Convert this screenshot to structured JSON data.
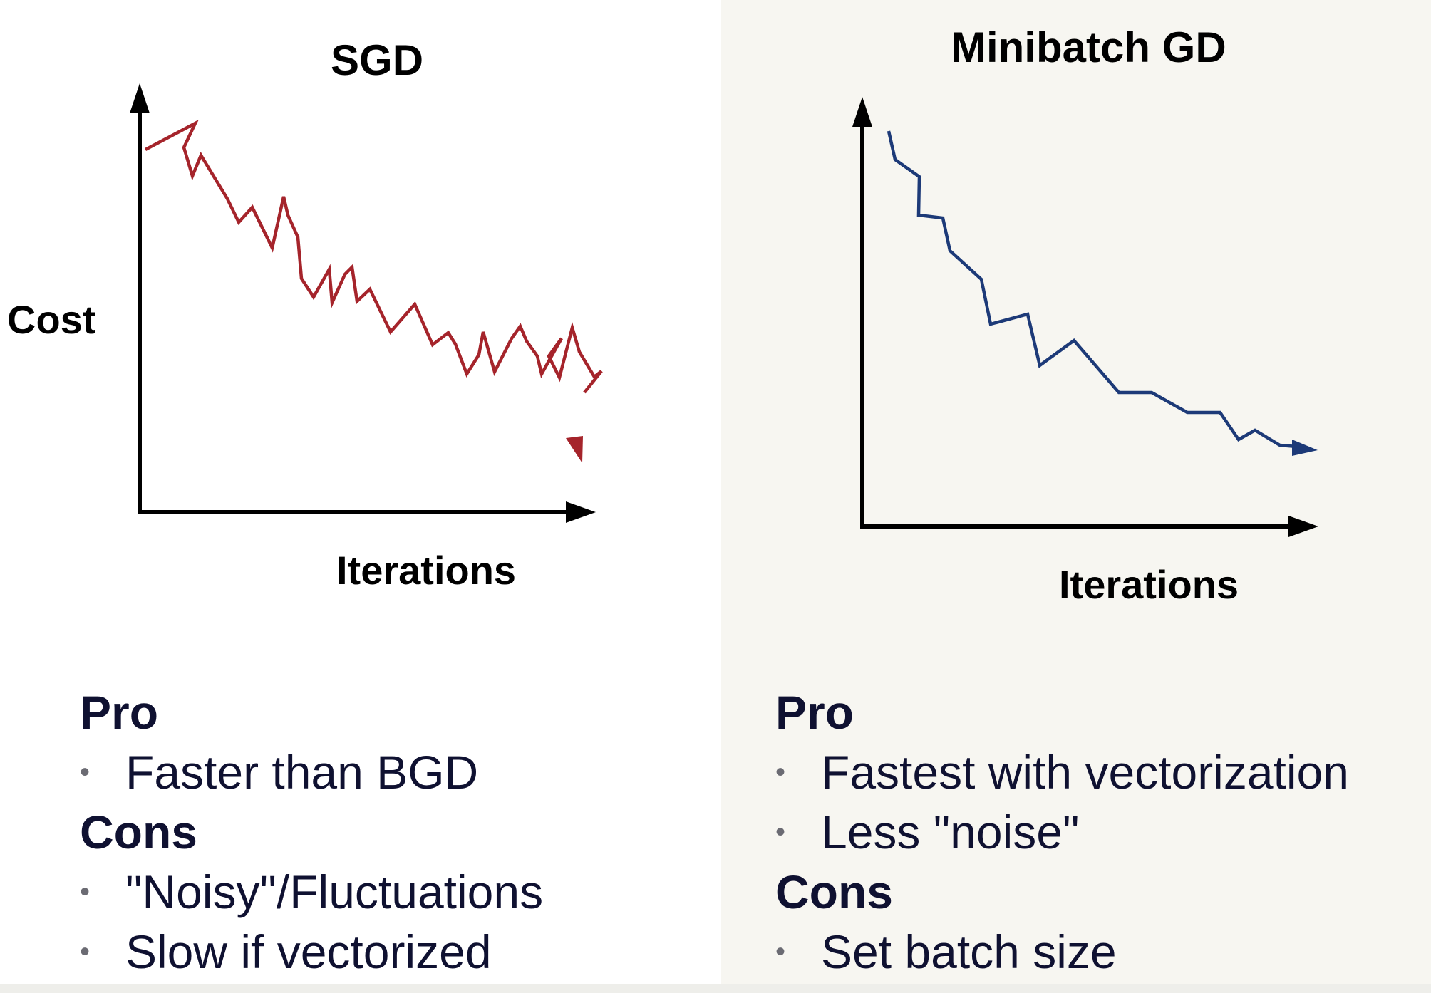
{
  "colors": {
    "background_left": "#ffffff",
    "background_right": "#f7f6f1",
    "sgd_line": "#a5242b",
    "minibatch_line": "#1d3a78",
    "axis": "#000000",
    "text_dark": "#0f1131",
    "bullet": "#6b6b73"
  },
  "sgd": {
    "title": "SGD",
    "ylabel": "Cost",
    "xlabel": "Iterations",
    "pro_heading": "Pro",
    "pros": [
      "Faster than BGD"
    ],
    "cons_heading": "Cons",
    "cons": [
      "\"Noisy\"/Fluctuations",
      "Slow if vectorized"
    ]
  },
  "minibatch": {
    "title": "Minibatch GD",
    "xlabel": "Iterations",
    "pro_heading": "Pro",
    "pros": [
      "Fastest with vectorization",
      "Less \"noise\""
    ],
    "cons_heading": "Cons",
    "cons": [
      "Set batch size"
    ]
  },
  "icons": {
    "bullet": "•"
  }
}
